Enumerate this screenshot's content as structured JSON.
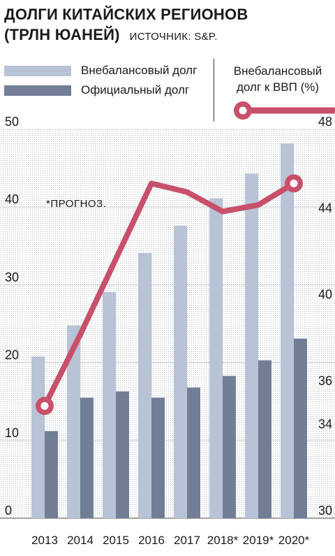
{
  "header": {
    "title_line1": "ДОЛГИ КИТАЙСКИХ РЕГИОНОВ",
    "title_line2": "(ТРЛН ЮАНЕЙ)",
    "source": "ИСТОЧНИК: S&P."
  },
  "legend": {
    "offbalance": "Внебалансовый долг",
    "official": "Официальный долг",
    "ratio_line1": "Внебалансовый",
    "ratio_line2": "долг к ВВП (%)"
  },
  "annotation": "*ПРОГНОЗ.",
  "colors": {
    "offbalance": "#b9c3d6",
    "official": "#717e96",
    "line": "#c8506a"
  },
  "chart_data": {
    "type": "bar",
    "categories": [
      "2013",
      "2014",
      "2015",
      "2016",
      "2017",
      "2018*",
      "2019*",
      "2020*"
    ],
    "series": [
      {
        "name": "Внебалансовый долг",
        "values": [
          20.8,
          24.8,
          29.1,
          34.1,
          37.6,
          41.1,
          44.3,
          48.2
        ]
      },
      {
        "name": "Официальный долг",
        "values": [
          11.2,
          15.5,
          16.3,
          15.5,
          16.8,
          18.3,
          20.3,
          23.1
        ]
      }
    ],
    "line_series": {
      "name": "Внебалансовый долг к ВВП (%)",
      "values": [
        35.2,
        38.5,
        42.0,
        45.5,
        45.1,
        44.2,
        44.5,
        45.5
      ]
    },
    "y_left": {
      "lim": [
        0,
        50
      ],
      "ticks": [
        "0",
        "10",
        "20",
        "30",
        "40",
        "50"
      ]
    },
    "y_right": {
      "lim": [
        30,
        48
      ],
      "ticks": [
        "30",
        "34",
        "36",
        "40",
        "44",
        "48"
      ],
      "tick_values": [
        30,
        34,
        36,
        40,
        44,
        48
      ]
    },
    "markers_at": [
      0,
      7
    ]
  }
}
